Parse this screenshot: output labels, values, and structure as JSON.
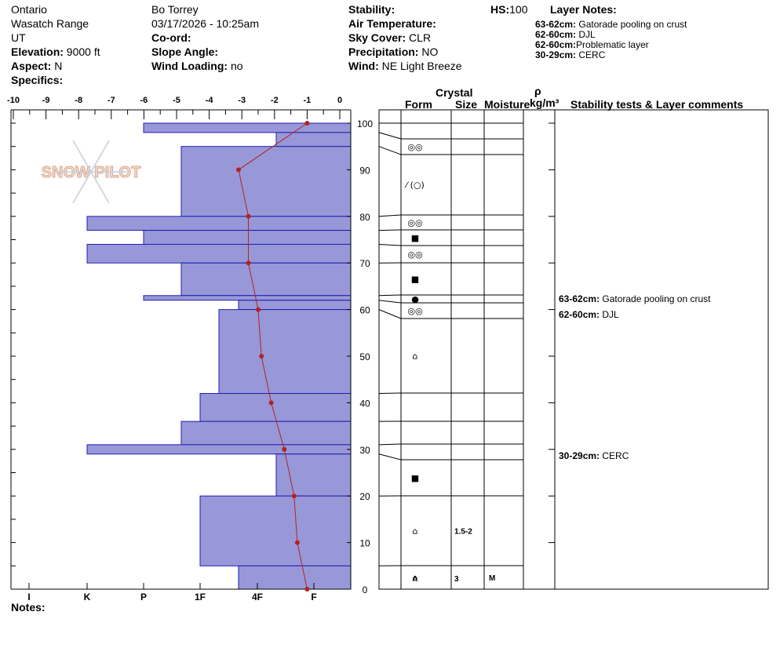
{
  "header": {
    "location": "Ontario",
    "range": "Wasatch Range",
    "state": "UT",
    "elevation_label": "Elevation:",
    "elevation_value": "9000 ft",
    "aspect_label": "Aspect:",
    "aspect_value": "N",
    "specifics_label": "Specifics:",
    "observer": "Bo Torrey",
    "datetime": "03/17/2026 - 10:25am",
    "coord_label": "Co-ord:",
    "slope_label": "Slope Angle:",
    "wind_loading_label": "Wind Loading:",
    "wind_loading_value": "no",
    "stability_label": "Stability:",
    "air_temp_label": "Air Temperature:",
    "sky_label": "Sky Cover:",
    "sky_value": "CLR",
    "precip_label": "Precipitation:",
    "precip_value": "NO",
    "wind_label": "Wind:",
    "wind_value": "NE Light Breeze",
    "hs_label": "HS:",
    "hs_value": "100",
    "layer_notes_title": "Layer Notes:",
    "layer_notes": [
      {
        "range": "63-62cm:",
        "text": "Gatorade pooling on crust"
      },
      {
        "range": "62-60cm:",
        "text": "DJL"
      },
      {
        "range": "62-60cm:",
        "text": "Problematic layer"
      },
      {
        "range": "30-29cm:",
        "text": "CERC"
      }
    ]
  },
  "notes_label": "Notes:",
  "logo_text": "SNOW PILOT",
  "table_headers": {
    "crystal": "Crystal",
    "form": "Form",
    "size": "Size",
    "moisture": "Moisture",
    "rho": "ρ",
    "density_unit": "kg/m³",
    "comments": "Stability tests & Layer comments"
  },
  "comments": [
    {
      "depth": 62,
      "range": "63-62cm:",
      "text": "Gatorade pooling on crust"
    },
    {
      "depth": 60,
      "range": "62-60cm:",
      "text": "DJL"
    },
    {
      "depth": 30,
      "range": "30-29cm:",
      "text": "CERC"
    }
  ],
  "chart_data": {
    "type": "bar",
    "x_top_ticks": [
      "-10",
      "-9",
      "-8",
      "-7",
      "-6",
      "-5",
      "-4",
      "-3",
      "-2",
      "-1",
      "0"
    ],
    "x_hardness_ticks": [
      "I",
      "K",
      "P",
      "1F",
      "4F",
      "F"
    ],
    "y_ticks": [
      "0",
      "10",
      "20",
      "30",
      "40",
      "50",
      "60",
      "70",
      "80",
      "90",
      "100"
    ],
    "xlim_temp": [
      -10,
      0
    ],
    "ylim": [
      0,
      100
    ],
    "bar_color": "#9898d8",
    "temp_color": "#b22222",
    "hardness_layers": [
      {
        "top": 100,
        "bottom": 98,
        "hardness": "P"
      },
      {
        "top": 98,
        "bottom": 95,
        "hardness": "4F-"
      },
      {
        "top": 95,
        "bottom": 80,
        "hardness": "1F+"
      },
      {
        "top": 80,
        "bottom": 77,
        "hardness": "K"
      },
      {
        "top": 77,
        "bottom": 74,
        "hardness": "P"
      },
      {
        "top": 74,
        "bottom": 70,
        "hardness": "K"
      },
      {
        "top": 70,
        "bottom": 63,
        "hardness": "1F+"
      },
      {
        "top": 63,
        "bottom": 62,
        "hardness": "P"
      },
      {
        "top": 62,
        "bottom": 60,
        "hardness": "4F+"
      },
      {
        "top": 60,
        "bottom": 42,
        "hardness": "1F-"
      },
      {
        "top": 42,
        "bottom": 36,
        "hardness": "1F"
      },
      {
        "top": 36,
        "bottom": 31,
        "hardness": "1F+"
      },
      {
        "top": 31,
        "bottom": 29,
        "hardness": "K"
      },
      {
        "top": 29,
        "bottom": 20,
        "hardness": "4F-"
      },
      {
        "top": 20,
        "bottom": 5,
        "hardness": "1F"
      },
      {
        "top": 5,
        "bottom": 0,
        "hardness": "4F+"
      }
    ],
    "temperature_profile": [
      {
        "depth": 100,
        "temp": -1.0
      },
      {
        "depth": 90,
        "temp": -3.1
      },
      {
        "depth": 80,
        "temp": -2.8
      },
      {
        "depth": 70,
        "temp": -2.8
      },
      {
        "depth": 60,
        "temp": -2.5
      },
      {
        "depth": 50,
        "temp": -2.4
      },
      {
        "depth": 40,
        "temp": -2.1
      },
      {
        "depth": 30,
        "temp": -1.7
      },
      {
        "depth": 20,
        "temp": -1.4
      },
      {
        "depth": 10,
        "temp": -1.3
      },
      {
        "depth": 0,
        "temp": -1.0
      }
    ],
    "layers": [
      {
        "top": 100,
        "bottom": 98,
        "form": "",
        "size": "",
        "moisture": ""
      },
      {
        "top": 98,
        "bottom": 95,
        "form": "◎◎",
        "size": "",
        "moisture": ""
      },
      {
        "top": 95,
        "bottom": 80,
        "form": "⁄ (○)",
        "size": "",
        "moisture": ""
      },
      {
        "top": 80,
        "bottom": 77,
        "form": "◎◎",
        "size": "",
        "moisture": ""
      },
      {
        "top": 77,
        "bottom": 74,
        "form": "■",
        "size": "",
        "moisture": ""
      },
      {
        "top": 74,
        "bottom": 70,
        "form": "◎◎",
        "size": "",
        "moisture": ""
      },
      {
        "top": 70,
        "bottom": 63,
        "form": "■",
        "size": "",
        "moisture": ""
      },
      {
        "top": 63,
        "bottom": 62,
        "form": "●",
        "size": "",
        "moisture": ""
      },
      {
        "top": 62,
        "bottom": 60,
        "form": "◎◎",
        "size": "",
        "moisture": ""
      },
      {
        "top": 60,
        "bottom": 42,
        "form": "⌂",
        "size": "",
        "moisture": ""
      },
      {
        "top": 42,
        "bottom": 36,
        "form": "",
        "size": "",
        "moisture": ""
      },
      {
        "top": 36,
        "bottom": 31,
        "form": "",
        "size": "",
        "moisture": ""
      },
      {
        "top": 31,
        "bottom": 29,
        "form": "",
        "size": "",
        "moisture": ""
      },
      {
        "top": 29,
        "bottom": 20,
        "form": "■",
        "size": "",
        "moisture": ""
      },
      {
        "top": 20,
        "bottom": 5,
        "form": "⌂",
        "size": "1.5-2",
        "moisture": ""
      },
      {
        "top": 5,
        "bottom": 0,
        "form": "⌂",
        "size": "",
        "moisture": "M"
      }
    ],
    "bottom_layer": {
      "form": "∧",
      "size": "3"
    }
  }
}
